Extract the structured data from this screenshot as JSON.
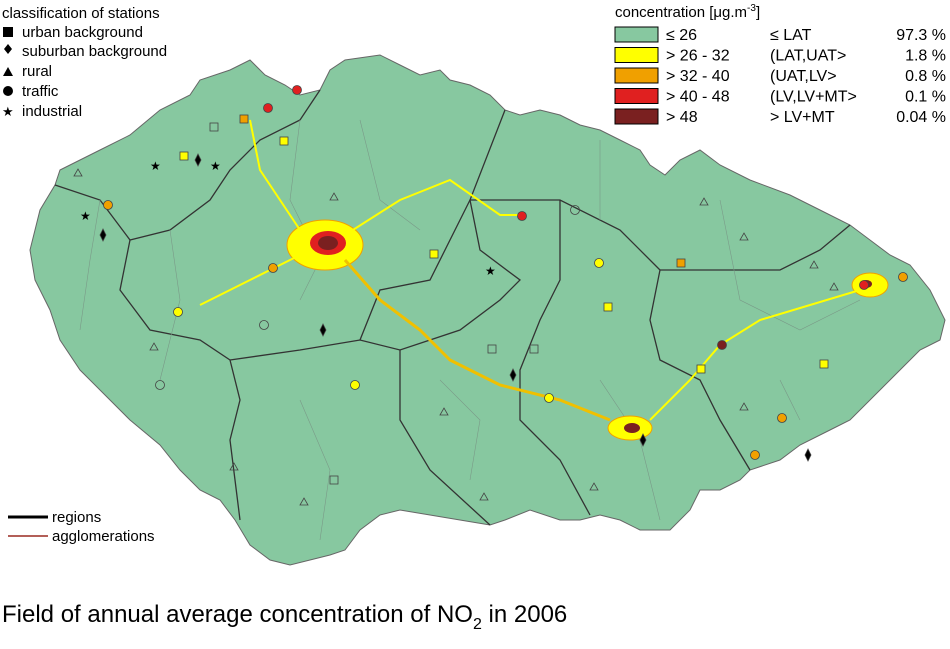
{
  "station_legend": {
    "title": "classification of stations",
    "items": [
      "urban background",
      "suburban background",
      "rural",
      "traffic",
      "industrial"
    ]
  },
  "concentration_legend": {
    "title": "concentration [μg.m",
    "title_sup": "-3",
    "title_end": "]",
    "rows": [
      {
        "range": "≤ 26",
        "class": "≤ LAT",
        "share": "97.3 %",
        "color": "#87c8a0"
      },
      {
        "range": "> 26 - 32",
        "class": "(LAT,UAT>",
        "share": "1.8 %",
        "color": "#ffff00"
      },
      {
        "range": "> 32 - 40",
        "class": "(UAT,LV>",
        "share": "0.8 %",
        "color": "#f0a000"
      },
      {
        "range": "> 40 - 48",
        "class": "(LV,LV+MT>",
        "share": "0.1 %",
        "color": "#e02020"
      },
      {
        "range": "> 48",
        "class": "> LV+MT",
        "share": "0.04 %",
        "color": "#7a2020"
      }
    ]
  },
  "line_legend": {
    "items": [
      "regions",
      "agglomerations"
    ]
  },
  "caption": {
    "text": "Field of annual average concentration of NO",
    "sub": "2",
    "end": " in 2006"
  }
}
